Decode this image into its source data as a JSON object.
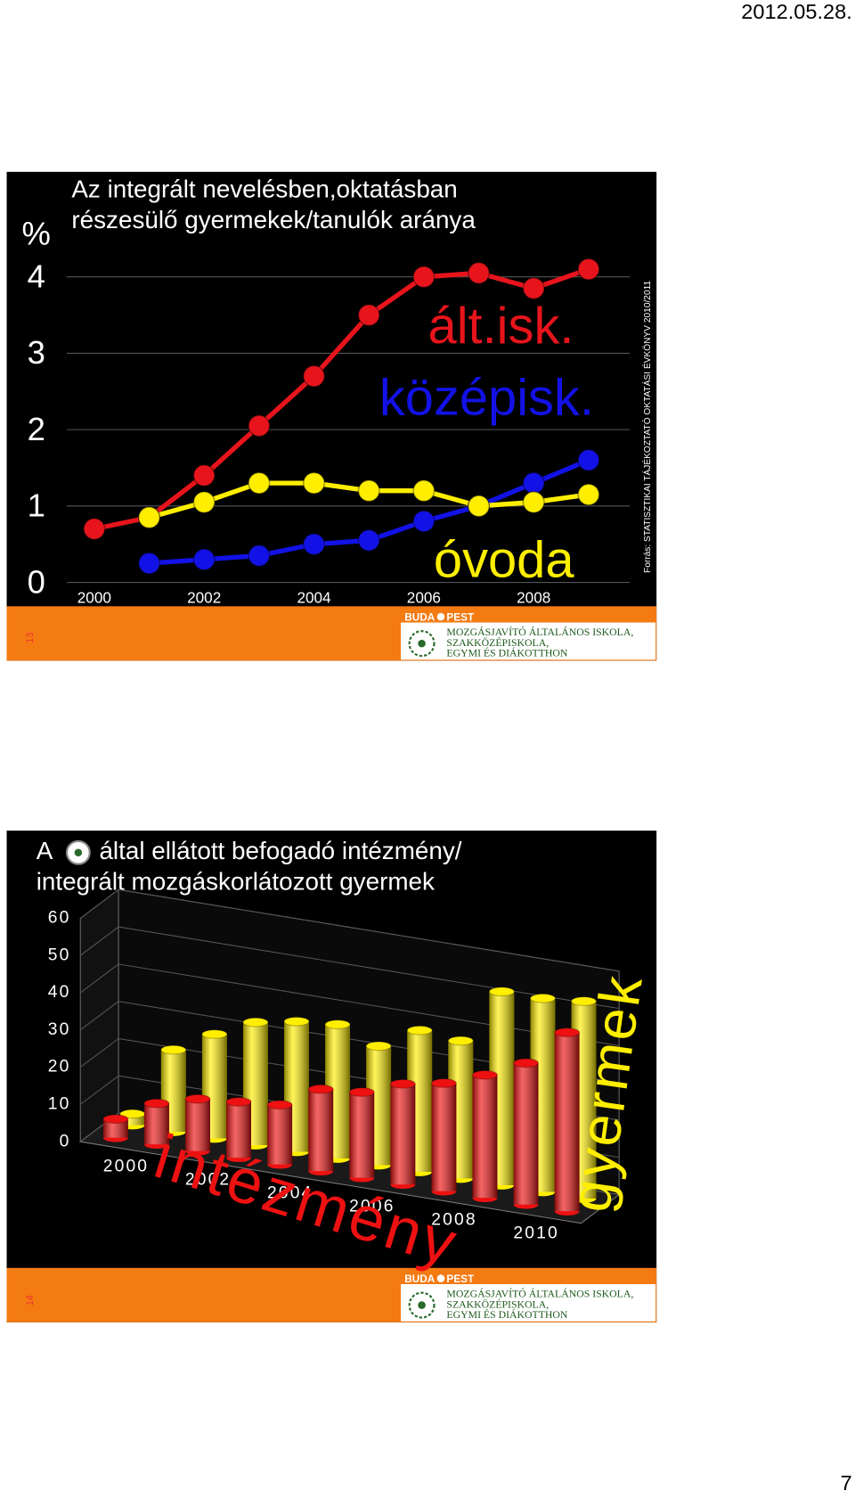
{
  "header": {
    "date": "2012.05.28."
  },
  "page_number": "7",
  "logo": {
    "city_left": "BUDA",
    "city_right": "PEST",
    "line1": "MOZGÁSJAVÍTÓ ÁLTALÁNOS ISKOLA,",
    "line2": "SZAKKÖZÉPISKOLA,",
    "line3": "EGYMI ÉS DIÁKOTTHON"
  },
  "slides": [
    {
      "number": "13",
      "source": "Forrás: STATISZTIKAI TÁJÉKOZTATÓ OKTATÁSI ÉVKÖNYV 2010/2011"
    },
    {
      "number": "14"
    }
  ],
  "chart_data": [
    {
      "type": "line",
      "title": [
        "Az integrált nevelésben,oktatásban",
        "részesülő gyermekek/tanulók aránya"
      ],
      "ylabel": "%",
      "x": [
        2000,
        2001,
        2002,
        2003,
        2004,
        2005,
        2006,
        2007,
        2008,
        2009
      ],
      "xlim": [
        1999.5,
        2009.75
      ],
      "xticks": [
        2000,
        2002,
        2004,
        2006,
        2008
      ],
      "ylim": [
        0,
        4.5
      ],
      "yticks": [
        0,
        1,
        2,
        3,
        4
      ],
      "grid": true,
      "series": [
        {
          "name": "ált.isk.",
          "color": "#e8141c",
          "values": [
            0.7,
            0.85,
            1.4,
            2.05,
            2.7,
            3.5,
            4.0,
            4.05,
            3.85,
            4.1
          ]
        },
        {
          "name": "középisk.",
          "color": "#1212e6",
          "values": [
            null,
            0.25,
            0.3,
            0.35,
            0.5,
            0.55,
            0.8,
            1.0,
            1.3,
            1.6
          ]
        },
        {
          "name": "óvoda",
          "color": "#ffee00",
          "values": [
            null,
            0.85,
            1.05,
            1.3,
            1.3,
            1.2,
            1.2,
            1.0,
            1.05,
            1.15
          ]
        }
      ]
    },
    {
      "type": "bar3d",
      "title": [
        "A",
        "által ellátott befogadó intézmény/",
        "integrált mozgáskorlátozott gyermek"
      ],
      "categories": [
        "2000",
        null,
        "2002",
        null,
        "2004",
        null,
        "2006",
        null,
        "2008",
        null,
        "2010",
        null
      ],
      "ylim": [
        0,
        60
      ],
      "yticks": [
        0,
        10,
        20,
        30,
        40,
        50,
        60
      ],
      "grid": true,
      "series": [
        {
          "name": "gyermek",
          "color": "#ffee00",
          "values": [
            3,
            22,
            28,
            33,
            35,
            36,
            32,
            38,
            37,
            52,
            52,
            53
          ]
        },
        {
          "name": "intézmény",
          "color": "#ee1111",
          "values": [
            5,
            11,
            14,
            15,
            16,
            22,
            23,
            27,
            29,
            33,
            38,
            48
          ]
        }
      ]
    }
  ]
}
